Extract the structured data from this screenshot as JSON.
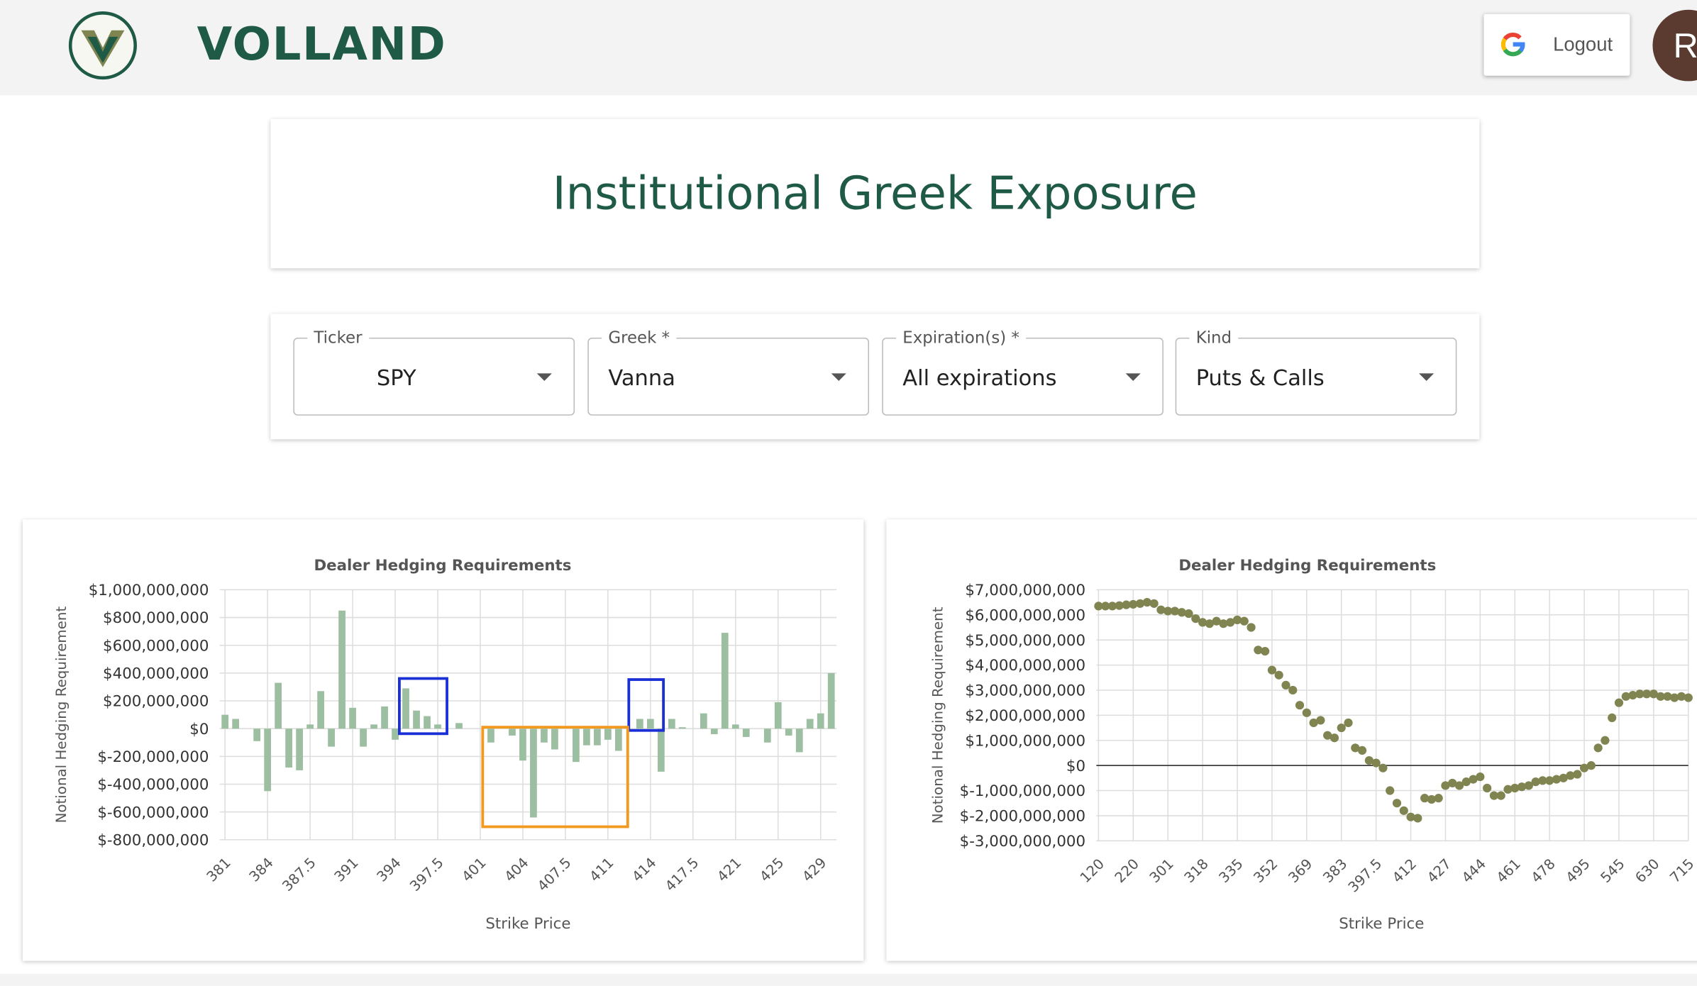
{
  "header": {
    "brand": "VOLLAND",
    "logout": "Logout",
    "avatar": "R"
  },
  "page_title": "Institutional Greek Exposure",
  "filters": [
    {
      "label": "Ticker",
      "value": "SPY"
    },
    {
      "label": "Greek *",
      "value": "Vanna"
    },
    {
      "label": "Expiration(s) *",
      "value": "All expirations"
    },
    {
      "label": "Kind",
      "value": "Puts & Calls"
    }
  ],
  "chart_data": [
    {
      "type": "bar",
      "title": "Dealer Hedging Requirements",
      "x_label": "Strike Price",
      "y_label": "Notional Hedging Requirement",
      "categories": [
        "381",
        null,
        null,
        null,
        "384",
        null,
        null,
        null,
        "387.5",
        null,
        null,
        null,
        "391",
        null,
        null,
        null,
        "394",
        null,
        null,
        null,
        "397.5",
        null,
        null,
        null,
        "401",
        null,
        null,
        null,
        "404",
        null,
        null,
        null,
        "407.5",
        null,
        null,
        null,
        "411",
        null,
        null,
        null,
        "414",
        null,
        null,
        null,
        "417.5",
        null,
        null,
        null,
        "421",
        null,
        null,
        null,
        "425",
        null,
        null,
        null,
        "429",
        null
      ],
      "values": [
        100000000,
        70000000,
        0,
        -90000000,
        -450000000,
        330000000,
        -280000000,
        -300000000,
        30000000,
        270000000,
        -130000000,
        850000000,
        150000000,
        -130000000,
        30000000,
        160000000,
        -80000000,
        290000000,
        130000000,
        90000000,
        30000000,
        0,
        40000000,
        0,
        0,
        -100000000,
        0,
        -50000000,
        -230000000,
        -640000000,
        -100000000,
        -150000000,
        0,
        -240000000,
        -120000000,
        -120000000,
        -80000000,
        -160000000,
        0,
        70000000,
        70000000,
        -310000000,
        70000000,
        10000000,
        0,
        110000000,
        -40000000,
        690000000,
        30000000,
        -60000000,
        0,
        -100000000,
        190000000,
        -50000000,
        -170000000,
        70000000,
        110000000,
        400000000
      ],
      "color": "#9dbfa1",
      "ylim": [
        -800000000,
        1000000000
      ],
      "yticks": [
        {
          "value": -800000000,
          "label": "$-800,000,000"
        },
        {
          "value": -600000000,
          "label": "$-600,000,000"
        },
        {
          "value": -400000000,
          "label": "$-400,000,000"
        },
        {
          "value": -200000000,
          "label": "$-200,000,000"
        },
        {
          "value": 0,
          "label": "$0"
        },
        {
          "value": 200000000,
          "label": "$200,000,000"
        },
        {
          "value": 400000000,
          "label": "$400,000,000"
        },
        {
          "value": 600000000,
          "label": "$600,000,000"
        },
        {
          "value": 800000000,
          "label": "$800,000,000"
        },
        {
          "value": 1000000000,
          "label": "$1,000,000,000"
        }
      ],
      "grid": true
    },
    {
      "type": "dot",
      "title": "Dealer Hedging Requirements",
      "x_label": "Strike Price",
      "y_label": "Notional Hedging Requirement",
      "categories": [
        "120",
        null,
        null,
        null,
        null,
        "220",
        null,
        null,
        null,
        null,
        "301",
        null,
        null,
        null,
        null,
        "318",
        null,
        null,
        null,
        null,
        "335",
        null,
        null,
        null,
        null,
        "352",
        null,
        null,
        null,
        null,
        "369",
        null,
        null,
        null,
        null,
        "383",
        null,
        null,
        null,
        null,
        "397.5",
        null,
        null,
        null,
        null,
        "412",
        null,
        null,
        null,
        null,
        "427",
        null,
        null,
        null,
        null,
        "444",
        null,
        null,
        null,
        null,
        "461",
        null,
        null,
        null,
        null,
        "478",
        null,
        null,
        null,
        null,
        "495",
        null,
        null,
        null,
        null,
        "545",
        null,
        null,
        null,
        null,
        "630",
        null,
        null,
        null,
        null,
        "715"
      ],
      "values": [
        6350000000,
        6350000000,
        6350000000,
        6370000000,
        6400000000,
        6420000000,
        6450000000,
        6500000000,
        6450000000,
        6200000000,
        6150000000,
        6150000000,
        6100000000,
        6050000000,
        5850000000,
        5700000000,
        5650000000,
        5750000000,
        5650000000,
        5700000000,
        5800000000,
        5750000000,
        5500000000,
        4600000000,
        4550000000,
        3800000000,
        3600000000,
        3200000000,
        3000000000,
        2400000000,
        2100000000,
        1700000000,
        1800000000,
        1200000000,
        1100000000,
        1500000000,
        1700000000,
        700000000,
        600000000,
        200000000,
        100000000,
        -100000000,
        -1000000000,
        -1500000000,
        -1800000000,
        -2050000000,
        -2100000000,
        -1300000000,
        -1350000000,
        -1300000000,
        -800000000,
        -700000000,
        -800000000,
        -650000000,
        -550000000,
        -450000000,
        -900000000,
        -1200000000,
        -1200000000,
        -950000000,
        -900000000,
        -850000000,
        -800000000,
        -650000000,
        -600000000,
        -600000000,
        -550000000,
        -500000000,
        -400000000,
        -350000000,
        -100000000,
        0,
        700000000,
        1000000000,
        1900000000,
        2500000000,
        2750000000,
        2800000000,
        2850000000,
        2850000000,
        2850000000,
        2750000000,
        2750000000,
        2700000000,
        2750000000,
        2700000000
      ],
      "color": "#7f8450",
      "ylim": [
        -3000000000,
        7000000000
      ],
      "yticks": [
        {
          "value": -3000000000,
          "label": "$-3,000,000,000"
        },
        {
          "value": -2000000000,
          "label": "$-2,000,000,000"
        },
        {
          "value": -1000000000,
          "label": "$-1,000,000,000"
        },
        {
          "value": 0,
          "label": "$0"
        },
        {
          "value": 1000000000,
          "label": "$1,000,000,000"
        },
        {
          "value": 2000000000,
          "label": "$2,000,000,000"
        },
        {
          "value": 3000000000,
          "label": "$3,000,000,000"
        },
        {
          "value": 4000000000,
          "label": "$4,000,000,000"
        },
        {
          "value": 5000000000,
          "label": "$5,000,000,000"
        },
        {
          "value": 6000000000,
          "label": "$6,000,000,000"
        },
        {
          "value": 7000000000,
          "label": "$7,000,000,000"
        }
      ],
      "grid": true,
      "zero_line": true
    }
  ]
}
